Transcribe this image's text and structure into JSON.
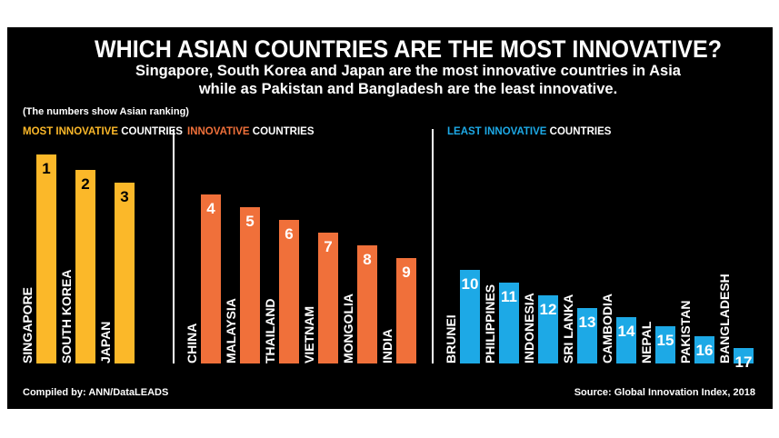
{
  "chart_data": {
    "type": "bar",
    "title": "WHICH ASIAN COUNTRIES ARE THE MOST INNOVATIVE?",
    "subtitle_lines": [
      "Singapore, South Korea and Japan are the most innovative countries in Asia",
      "while as Pakistan and Bangladesh are the least innovative."
    ],
    "note": "(The numbers show Asian ranking)",
    "groups": [
      {
        "label_colored": "MOST INNOVATIVE",
        "label_white": " COUNTRIES",
        "color": "#FBB829",
        "categories": [
          "SINGAPORE",
          "SOUTH KOREA",
          "JAPAN"
        ],
        "values": [
          1,
          2,
          3
        ]
      },
      {
        "label_colored": "INNOVATIVE",
        "label_white": " COUNTRIES",
        "color": "#F0703A",
        "categories": [
          "CHINA",
          "MALAYSIA",
          "THAILAND",
          "VIETNAM",
          "MONGOLIA",
          "INDIA"
        ],
        "values": [
          4,
          5,
          6,
          7,
          8,
          9
        ]
      },
      {
        "label_colored": "LEAST INNOVATIVE",
        "label_white": " COUNTRIES",
        "color": "#1DA9E6",
        "categories": [
          "BRUNEI",
          "PHILIPPINES",
          "INDONESIA",
          "SRI LANKA",
          "CAMBODIA",
          "NEPAL",
          "PAKISTAN",
          "BANGLADESH"
        ],
        "values": [
          10,
          11,
          12,
          13,
          14,
          15,
          16,
          17
        ]
      }
    ],
    "credit": "Compiled by: ANN/DataLEADS",
    "source": "Source: Global Innovation Index, 2018"
  }
}
